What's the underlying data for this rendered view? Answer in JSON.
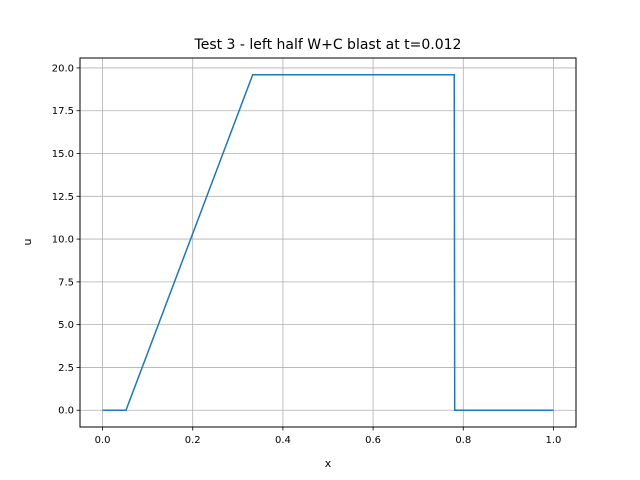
{
  "chart_data": {
    "type": "line",
    "title": "Test 3 - left half W+C blast at t=0.012",
    "xlabel": "x",
    "ylabel": "u",
    "xlim": [
      -0.05,
      1.05
    ],
    "ylim": [
      -0.98,
      20.58
    ],
    "grid": true,
    "x_ticks": [
      "0.0",
      "0.2",
      "0.4",
      "0.6",
      "0.8",
      "1.0"
    ],
    "y_ticks": [
      "0.0",
      "2.5",
      "5.0",
      "7.5",
      "10.0",
      "12.5",
      "15.0",
      "17.5",
      "20.0"
    ],
    "series": [
      {
        "color": "#1f77b4",
        "x": [
          0.0,
          0.052,
          0.333,
          0.78,
          0.781,
          1.0
        ],
        "y": [
          0.0,
          0.0,
          19.6,
          19.6,
          0.0,
          0.0
        ]
      }
    ]
  }
}
